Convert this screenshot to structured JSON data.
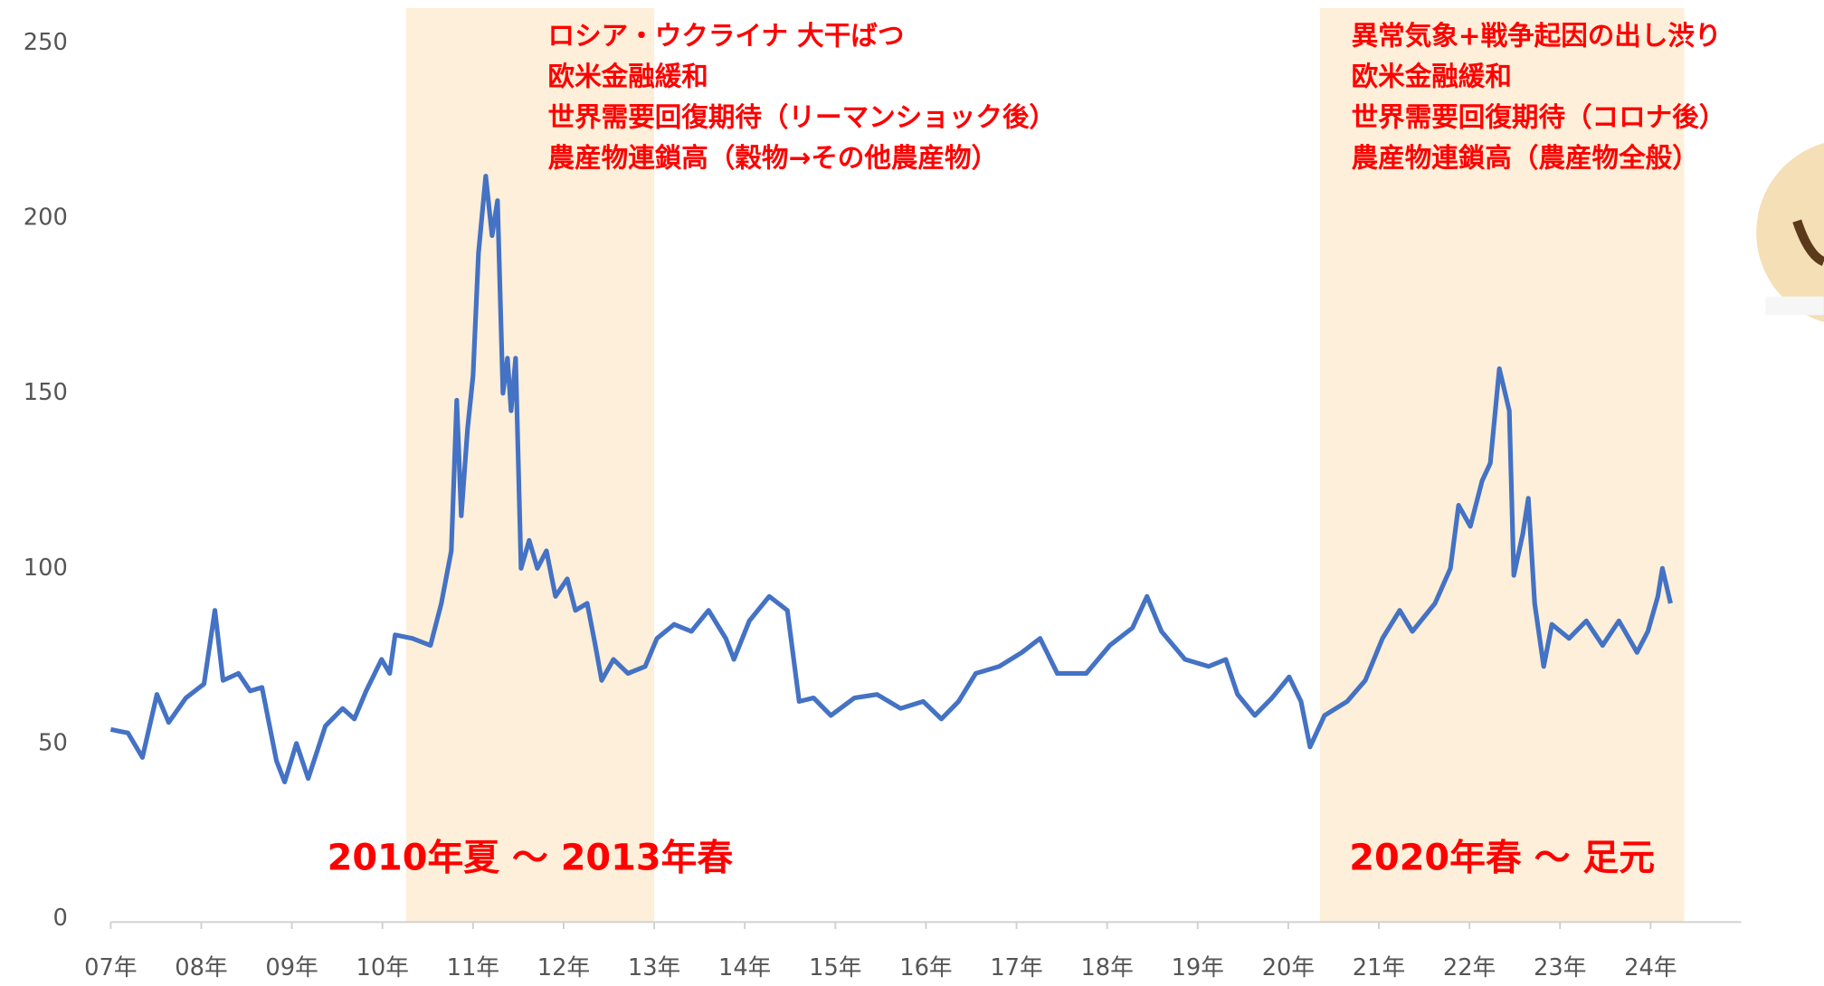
{
  "chart_data": {
    "type": "line",
    "x": [
      7.0,
      7.19,
      7.35,
      7.51,
      7.64,
      7.83,
      8.03,
      8.15,
      8.24,
      8.41,
      8.54,
      8.67,
      8.83,
      8.92,
      9.05,
      9.18,
      9.37,
      9.56,
      9.69,
      9.82,
      9.99,
      10.08,
      10.14,
      10.33,
      10.53,
      10.65,
      10.76,
      10.82,
      10.87,
      10.94,
      11.0,
      11.06,
      11.14,
      11.21,
      11.27,
      11.33,
      11.38,
      11.42,
      11.47,
      11.53,
      11.62,
      11.71,
      11.81,
      11.91,
      12.04,
      12.13,
      12.26,
      12.35,
      12.42,
      12.55,
      12.71,
      12.9,
      13.03,
      13.22,
      13.41,
      13.6,
      13.79,
      13.88,
      14.05,
      14.27,
      14.47,
      14.6,
      14.76,
      14.95,
      15.21,
      15.46,
      15.72,
      15.97,
      16.17,
      16.36,
      16.55,
      16.81,
      17.06,
      17.26,
      17.45,
      17.77,
      18.03,
      18.28,
      18.44,
      18.6,
      18.86,
      19.12,
      19.31,
      19.44,
      19.63,
      19.82,
      20.01,
      20.14,
      20.24,
      20.4,
      20.65,
      20.85,
      21.04,
      21.23,
      21.37,
      21.62,
      21.79,
      21.88,
      22.01,
      22.14,
      22.23,
      22.33,
      22.44,
      22.49,
      22.59,
      22.65,
      22.72,
      22.82,
      22.91,
      23.1,
      23.29,
      23.47,
      23.65,
      23.85,
      23.97,
      24.08,
      24.13,
      24.22
    ],
    "values": [
      54,
      53,
      46,
      64,
      56,
      63,
      67,
      88,
      68,
      70,
      65,
      66,
      45,
      39,
      50,
      40,
      55,
      60,
      57,
      65,
      74,
      70,
      81,
      80,
      78,
      90,
      105,
      148,
      115,
      140,
      155,
      190,
      212,
      195,
      205,
      150,
      160,
      145,
      160,
      100,
      108,
      100,
      105,
      92,
      97,
      88,
      90,
      78,
      68,
      74,
      70,
      72,
      80,
      84,
      82,
      88,
      80,
      74,
      85,
      92,
      88,
      62,
      63,
      58,
      63,
      64,
      60,
      62,
      57,
      62,
      70,
      72,
      76,
      80,
      70,
      70,
      78,
      83,
      92,
      82,
      74,
      72,
      74,
      64,
      58,
      63,
      69,
      62,
      49,
      58,
      62,
      68,
      80,
      88,
      82,
      90,
      100,
      118,
      112,
      125,
      130,
      157,
      145,
      98,
      110,
      120,
      90,
      72,
      84,
      80,
      85,
      78,
      85,
      76,
      82,
      92,
      100,
      90
    ],
    "color": "#4472c4",
    "xlim": [
      7,
      25
    ],
    "xticks": [
      {
        "value": 7,
        "label": "07年"
      },
      {
        "value": 8,
        "label": "08年"
      },
      {
        "value": 9,
        "label": "09年"
      },
      {
        "value": 10,
        "label": "10年"
      },
      {
        "value": 11,
        "label": "11年"
      },
      {
        "value": 12,
        "label": "12年"
      },
      {
        "value": 13,
        "label": "13年"
      },
      {
        "value": 14,
        "label": "14年"
      },
      {
        "value": 15,
        "label": "15年"
      },
      {
        "value": 16,
        "label": "16年"
      },
      {
        "value": 17,
        "label": "17年"
      },
      {
        "value": 18,
        "label": "18年"
      },
      {
        "value": 19,
        "label": "19年"
      },
      {
        "value": 20,
        "label": "20年"
      },
      {
        "value": 21,
        "label": "21年"
      },
      {
        "value": 22,
        "label": "22年"
      },
      {
        "value": 23,
        "label": "23年"
      },
      {
        "value": 24,
        "label": "24年"
      }
    ],
    "ylim": [
      0,
      250
    ],
    "yticks": [
      0,
      50,
      100,
      150,
      200,
      250
    ],
    "grid": false,
    "highlight_color": "#fdefd9",
    "annotation_color": "#ff0000",
    "highlights": [
      {
        "label": "2010年夏 ～ 2013年春",
        "range": [
          10.26,
          13.0
        ],
        "notes": [
          "ロシア・ウクライナ 大干ばつ",
          "欧米金融緩和",
          "世界需要回復期待（リーマンショック後）",
          "農産物連鎖高（穀物→その他農産物）"
        ]
      },
      {
        "label": "2020年春 ～ 足元",
        "range": [
          20.35,
          24.37
        ],
        "notes": [
          "異常気象+戦争起因の出し渋り",
          "欧米金融緩和",
          "世界需要回復期待（コロナ後）",
          "農産物連鎖高（農産物全般）"
        ]
      }
    ]
  }
}
